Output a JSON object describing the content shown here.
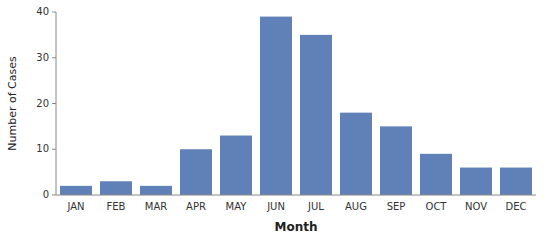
{
  "chart_data": {
    "type": "bar",
    "categories": [
      "JAN",
      "FEB",
      "MAR",
      "APR",
      "MAY",
      "JUN",
      "JUL",
      "AUG",
      "SEP",
      "OCT",
      "NOV",
      "DEC"
    ],
    "values": [
      2,
      3,
      2,
      10,
      13,
      39,
      35,
      18,
      15,
      9,
      6,
      6
    ],
    "color": "#6080b8",
    "xlabel": "Month",
    "ylabel": "Number of Cases",
    "ylim": [
      0,
      40
    ],
    "yticks": [
      0,
      10,
      20,
      30,
      40
    ],
    "grid": false
  }
}
